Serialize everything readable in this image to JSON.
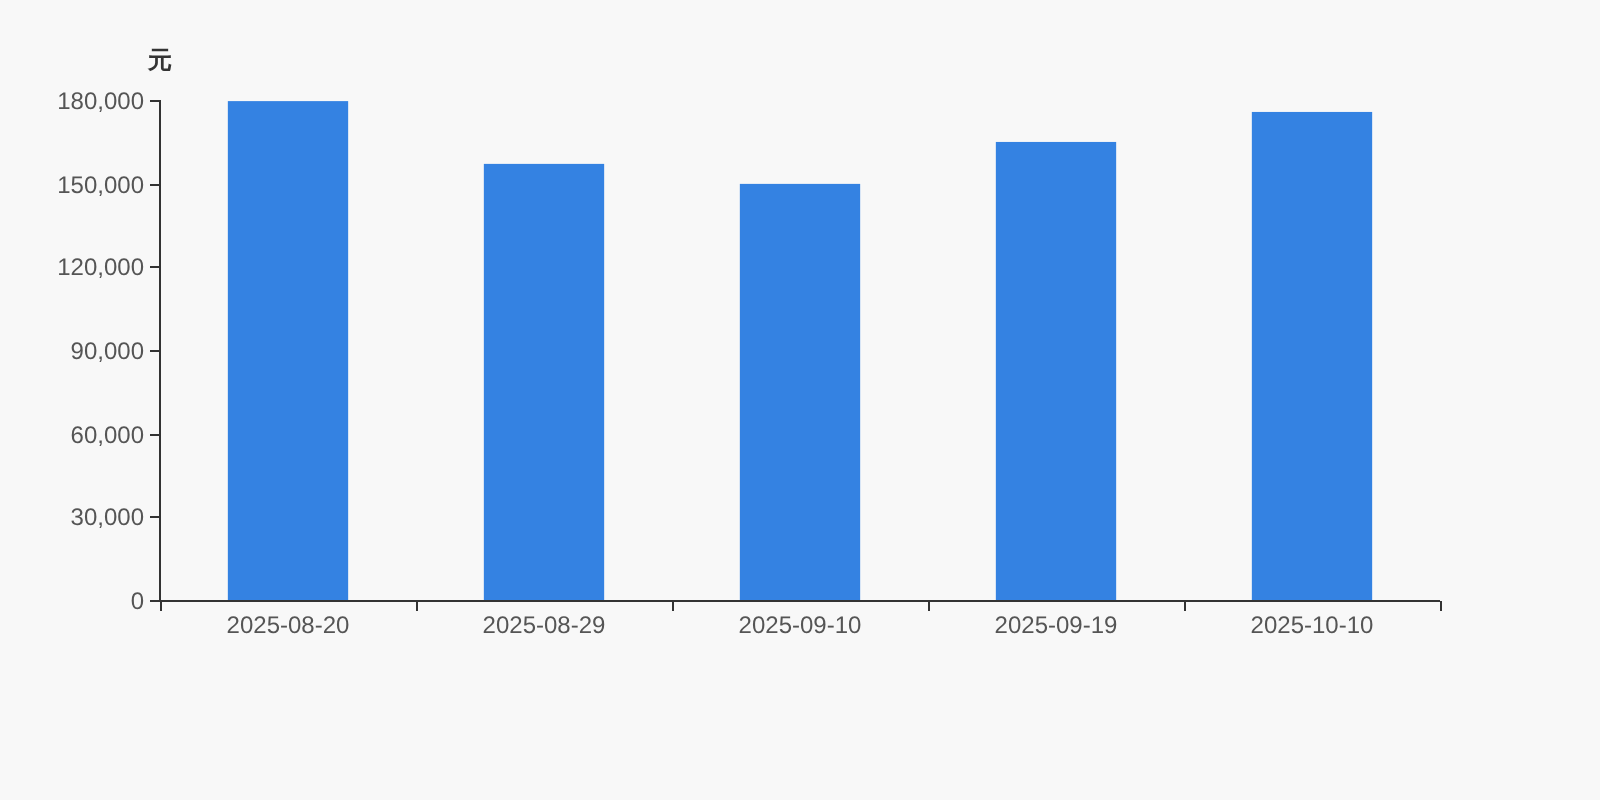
{
  "chart_data": {
    "type": "bar",
    "ylabel": "元",
    "categories": [
      "2025-08-20",
      "2025-08-29",
      "2025-09-10",
      "2025-09-19",
      "2025-10-10"
    ],
    "values": [
      179600,
      157000,
      149800,
      164900,
      175700
    ],
    "color": "#3482e2",
    "ylim": [
      0,
      180000
    ],
    "yticks": [
      0,
      {
        "value": 30000,
        "label": "30,000"
      },
      {
        "value": 60000,
        "label": "60,000"
      },
      {
        "value": 90000,
        "label": "90,000"
      },
      {
        "value": 120000,
        "label": "120,000"
      },
      {
        "value": 150000,
        "label": "150,000"
      },
      {
        "value": 180000,
        "label": "180,000"
      }
    ]
  }
}
